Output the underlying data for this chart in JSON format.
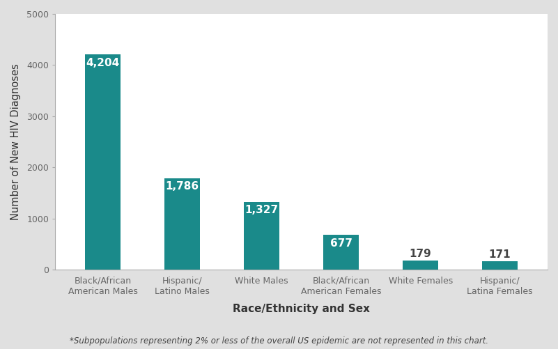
{
  "categories": [
    "Black/African\nAmerican Males",
    "Hispanic/\nLatino Males",
    "White Males",
    "Black/African\nAmerican Females",
    "White Females",
    "Hispanic/\nLatina Females"
  ],
  "values": [
    4204,
    1786,
    1327,
    677,
    179,
    171
  ],
  "bar_color": "#1a8a8a",
  "label_color_inside": "#ffffff",
  "label_color_outside": "#444444",
  "ylabel": "Number of New HIV Diagnoses",
  "xlabel": "Race/Ethnicity and Sex",
  "footnote": "*Subpopulations representing 2% or less of the overall US epidemic are not represented in this chart.",
  "ylim": [
    0,
    5000
  ],
  "yticks": [
    0,
    1000,
    2000,
    3000,
    4000,
    5000
  ],
  "figure_bg": "#e0e0e0",
  "plot_bg": "#ffffff",
  "inside_threshold": 300,
  "ylabel_fontsize": 10.5,
  "xlabel_fontsize": 11,
  "tick_label_fontsize": 9,
  "value_label_fontsize": 11,
  "footnote_fontsize": 8.5,
  "bar_width": 0.45,
  "spine_color": "#aaaaaa",
  "tick_color": "#666666"
}
